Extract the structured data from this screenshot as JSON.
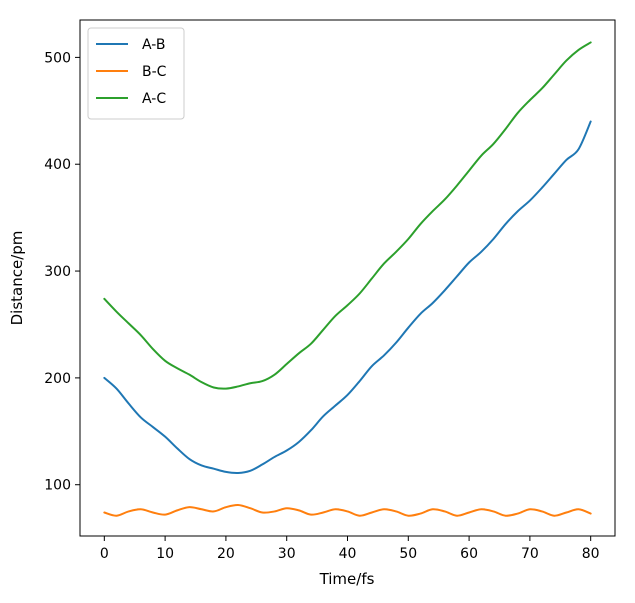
{
  "chart_data": {
    "type": "line",
    "title": "",
    "xlabel": "Time/fs",
    "ylabel": "Distance/pm",
    "xlim": [
      -4,
      84
    ],
    "ylim": [
      52,
      535
    ],
    "xticks": [
      0,
      10,
      20,
      30,
      40,
      50,
      60,
      70,
      80
    ],
    "yticks": [
      100,
      200,
      300,
      400,
      500
    ],
    "grid": false,
    "legend_position": "upper-left",
    "series": [
      {
        "name": "A-B",
        "color": "#1f77b4",
        "x": [
          0,
          2,
          4,
          6,
          8,
          10,
          12,
          14,
          16,
          18,
          20,
          22,
          24,
          26,
          28,
          30,
          32,
          34,
          36,
          38,
          40,
          42,
          44,
          46,
          48,
          50,
          52,
          54,
          56,
          58,
          60,
          62,
          64,
          66,
          68,
          70,
          72,
          74,
          76,
          78,
          80
        ],
        "y": [
          200,
          190,
          176,
          163,
          154,
          145,
          134,
          124,
          118,
          115,
          112,
          111,
          113,
          119,
          126,
          132,
          140,
          151,
          164,
          174,
          184,
          197,
          211,
          221,
          233,
          247,
          260,
          270,
          282,
          295,
          308,
          318,
          330,
          344,
          356,
          366,
          378,
          391,
          404,
          414,
          440
        ]
      },
      {
        "name": "B-C",
        "color": "#ff7f0e",
        "x": [
          0,
          2,
          4,
          6,
          8,
          10,
          12,
          14,
          16,
          18,
          20,
          22,
          24,
          26,
          28,
          30,
          32,
          34,
          36,
          38,
          40,
          42,
          44,
          46,
          48,
          50,
          52,
          54,
          56,
          58,
          60,
          62,
          64,
          66,
          68,
          70,
          72,
          74,
          76,
          78,
          80
        ],
        "y": [
          74,
          71,
          75,
          77,
          74,
          72,
          76,
          79,
          77,
          75,
          79,
          81,
          78,
          74,
          75,
          78,
          76,
          72,
          74,
          77,
          75,
          71,
          74,
          77,
          75,
          71,
          73,
          77,
          75,
          71,
          74,
          77,
          75,
          71,
          73,
          77,
          75,
          71,
          74,
          77,
          73
        ]
      },
      {
        "name": "A-C",
        "color": "#2ca02c",
        "x": [
          0,
          2,
          4,
          6,
          8,
          10,
          12,
          14,
          16,
          18,
          20,
          22,
          24,
          26,
          28,
          30,
          32,
          34,
          36,
          38,
          40,
          42,
          44,
          46,
          48,
          50,
          52,
          54,
          56,
          58,
          60,
          62,
          64,
          66,
          68,
          70,
          72,
          74,
          76,
          78,
          80
        ],
        "y": [
          274,
          262,
          251,
          240,
          227,
          216,
          209,
          203,
          196,
          191,
          190,
          192,
          195,
          197,
          203,
          213,
          223,
          232,
          245,
          258,
          268,
          279,
          293,
          307,
          318,
          330,
          344,
          356,
          367,
          380,
          394,
          408,
          419,
          433,
          448,
          460,
          471,
          484,
          497,
          507,
          514
        ]
      }
    ]
  }
}
